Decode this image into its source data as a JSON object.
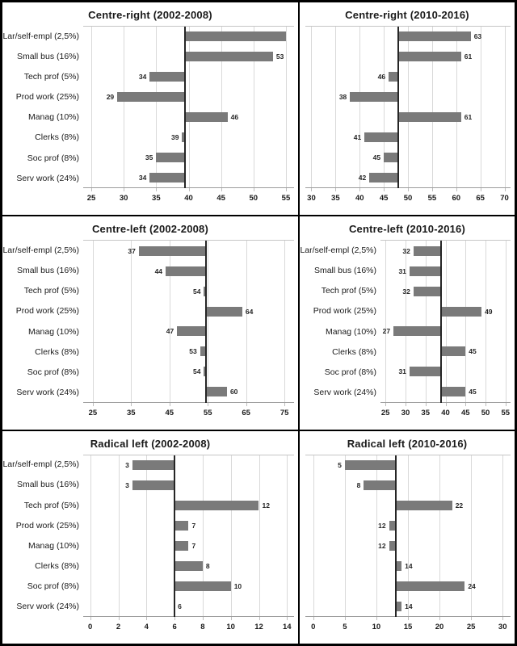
{
  "figure_title": "",
  "categories": [
    "Lar/self-empl (2,5%)",
    "Small bus (16%)",
    "Tech prof (5%)",
    "Prod work (25%)",
    "Manag (10%)",
    "Clerks (8%)",
    "Soc prof (8%)",
    "Serv work (24%)"
  ],
  "style": {
    "bar_color": "#7a7a7a",
    "gridline_color": "#d9d9d9",
    "baseline_color": "#262626",
    "tickmark_color": "#bdbdbd",
    "border_color": "#000000"
  },
  "chart_data": [
    {
      "type": "bar",
      "orientation": "horizontal",
      "title": "Centre-right (2002-2008)",
      "categories": [
        "Lar/self-empl (2,5%)",
        "Small bus (16%)",
        "Tech prof (5%)",
        "Prod work (25%)",
        "Manag (10%)",
        "Clerks (8%)",
        "Soc prof (8%)",
        "Serv work (24%)"
      ],
      "values": [
        55,
        53,
        34,
        29,
        46,
        39,
        35,
        34
      ],
      "bar_labels": [
        "",
        "53",
        "34",
        "29",
        "46",
        "39",
        "35",
        "34"
      ],
      "ticks": [
        25,
        30,
        35,
        40,
        45,
        50,
        55
      ],
      "xlim": [
        23.75,
        56.25
      ],
      "baseline": 39.4,
      "show_category_labels": true,
      "grid": true,
      "xlabel": "",
      "ylabel": ""
    },
    {
      "type": "bar",
      "orientation": "horizontal",
      "title": "Centre-right (2010-2016)",
      "categories": [
        "Lar/self-empl (2,5%)",
        "Small bus (16%)",
        "Tech prof (5%)",
        "Prod work (25%)",
        "Manag (10%)",
        "Clerks (8%)",
        "Soc prof (8%)",
        "Serv work (24%)"
      ],
      "values": [
        63,
        61,
        46,
        38,
        61,
        41,
        45,
        42
      ],
      "bar_labels": [
        "63",
        "61",
        "46",
        "38",
        "61",
        "41",
        "45",
        "42"
      ],
      "ticks": [
        30,
        35,
        40,
        45,
        50,
        55,
        60,
        65,
        70
      ],
      "xlim": [
        28.75,
        71.25
      ],
      "baseline": 48,
      "show_category_labels": false,
      "grid": true,
      "xlabel": "",
      "ylabel": ""
    },
    {
      "type": "bar",
      "orientation": "horizontal",
      "title": "Centre-left (2002-2008)",
      "categories": [
        "Lar/self-empl (2,5%)",
        "Small bus (16%)",
        "Tech prof (5%)",
        "Prod work (25%)",
        "Manag (10%)",
        "Clerks (8%)",
        "Soc prof (8%)",
        "Serv work (24%)"
      ],
      "values": [
        37,
        44,
        54,
        64,
        47,
        53,
        54,
        60
      ],
      "bar_labels": [
        "37",
        "44",
        "54",
        "64",
        "47",
        "53",
        "54",
        "60"
      ],
      "ticks": [
        25,
        35,
        45,
        55,
        65,
        75
      ],
      "xlim": [
        22.5,
        77.5
      ],
      "baseline": 54.5,
      "show_category_labels": true,
      "grid": true,
      "xlabel": "",
      "ylabel": ""
    },
    {
      "type": "bar",
      "orientation": "horizontal",
      "title": "Centre-left (2010-2016)",
      "categories": [
        "Lar/self-empl (2,5%)",
        "Small bus (16%)",
        "Tech prof (5%)",
        "Prod work (25%)",
        "Manag (10%)",
        "Clerks (8%)",
        "Soc prof (8%)",
        "Serv work (24%)"
      ],
      "values": [
        32,
        31,
        32,
        49,
        27,
        45,
        31,
        45
      ],
      "bar_labels": [
        "32",
        "31",
        "32",
        "49",
        "27",
        "45",
        "31",
        "45"
      ],
      "ticks": [
        25,
        30,
        35,
        40,
        45,
        50,
        55
      ],
      "xlim": [
        23.75,
        56.25
      ],
      "baseline": 38.9,
      "show_category_labels": true,
      "grid": true,
      "xlabel": "",
      "ylabel": ""
    },
    {
      "type": "bar",
      "orientation": "horizontal",
      "title": "Radical left (2002-2008)",
      "categories": [
        "Lar/self-empl (2,5%)",
        "Small bus (16%)",
        "Tech prof (5%)",
        "Prod work (25%)",
        "Manag (10%)",
        "Clerks (8%)",
        "Soc prof (8%)",
        "Serv work (24%)"
      ],
      "values": [
        3,
        3,
        12,
        7,
        7,
        8,
        10,
        6
      ],
      "bar_labels": [
        "3",
        "3",
        "12",
        "7",
        "7",
        "8",
        "10",
        "6"
      ],
      "ticks": [
        0,
        2,
        4,
        6,
        8,
        10,
        12,
        14
      ],
      "xlim": [
        -0.5,
        14.5
      ],
      "baseline": 6,
      "show_category_labels": true,
      "grid": true,
      "xlabel": "",
      "ylabel": ""
    },
    {
      "type": "bar",
      "orientation": "horizontal",
      "title": "Radical left (2010-2016)",
      "categories": [
        "Lar/self-empl (2,5%)",
        "Small bus (16%)",
        "Tech prof (5%)",
        "Prod work (25%)",
        "Manag (10%)",
        "Clerks (8%)",
        "Soc prof (8%)",
        "Serv work (24%)"
      ],
      "values": [
        5,
        8,
        22,
        12,
        12,
        14,
        24,
        14
      ],
      "bar_labels": [
        "5",
        "8",
        "22",
        "12",
        "12",
        "14",
        "24",
        "14"
      ],
      "ticks": [
        0,
        5,
        10,
        15,
        20,
        25,
        30
      ],
      "xlim": [
        -1.25,
        31.25
      ],
      "baseline": 13.1,
      "show_category_labels": false,
      "grid": true,
      "xlabel": "",
      "ylabel": ""
    }
  ]
}
